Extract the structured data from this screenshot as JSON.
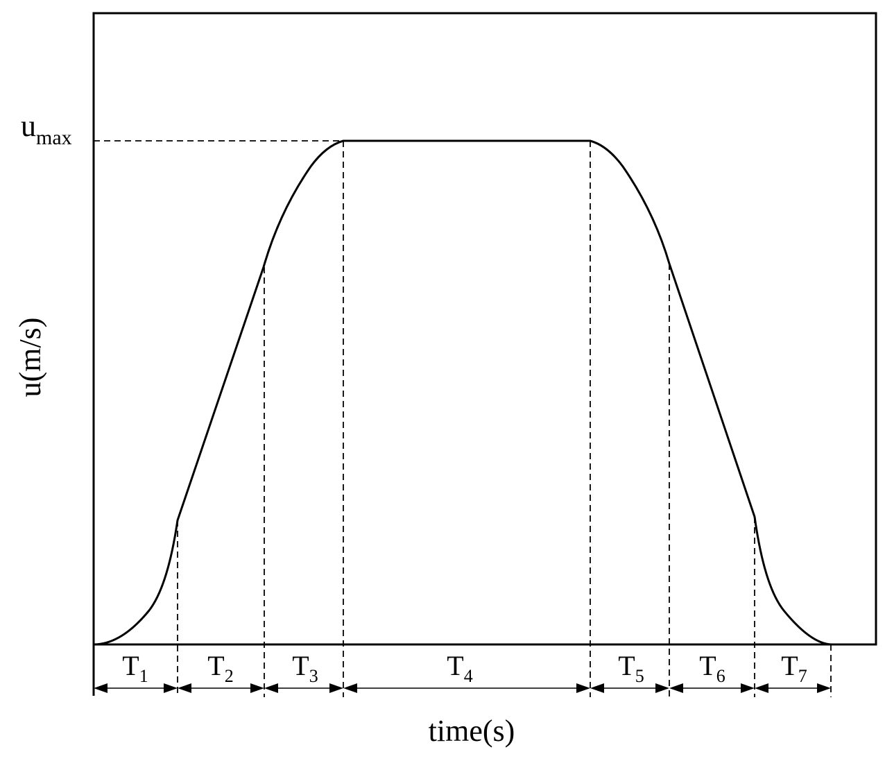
{
  "y_axis_label": "u(m/s)",
  "x_axis_label": "time(s)",
  "umax_label": {
    "base": "u",
    "subscript": "max"
  },
  "segments": [
    {
      "base": "T",
      "subscript": "1"
    },
    {
      "base": "T",
      "subscript": "2"
    },
    {
      "base": "T",
      "subscript": "3"
    },
    {
      "base": "T",
      "subscript": "4"
    },
    {
      "base": "T",
      "subscript": "5"
    },
    {
      "base": "T",
      "subscript": "6"
    },
    {
      "base": "T",
      "subscript": "7"
    }
  ]
}
